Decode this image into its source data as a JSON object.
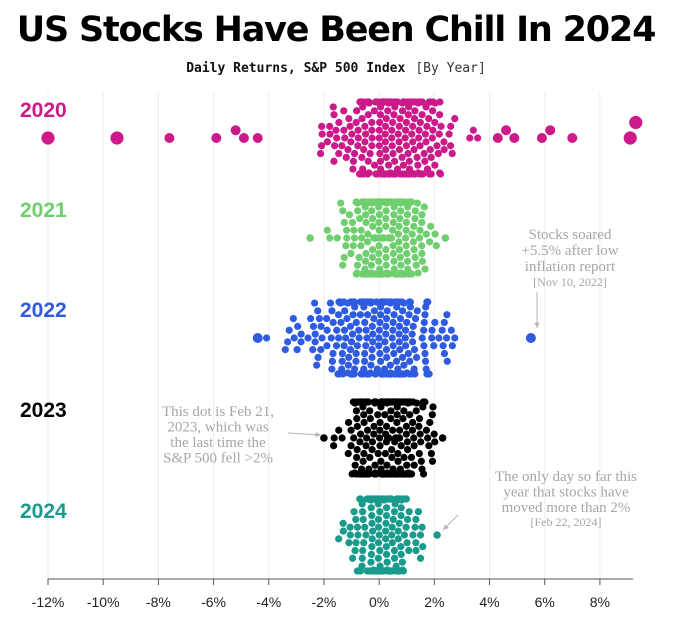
{
  "title": "US Stocks Have Been Chill In 2024",
  "subtitle": "Daily Returns, S&P 500 Index",
  "subtitle_note": "[By Year]",
  "chart_data": {
    "type": "scatter",
    "subtype": "beeswarm",
    "x_unit": "daily return (%)",
    "xlim": [
      -12,
      9.2
    ],
    "x_ticks": [
      "-12%",
      "-10%",
      "-8%",
      "-6%",
      "-4%",
      "-2%",
      "0%",
      "2%",
      "4%",
      "6%",
      "8%"
    ],
    "x_tick_values": [
      -12,
      -10,
      -8,
      -6,
      -4,
      -2,
      0,
      2,
      4,
      6,
      8
    ],
    "grid": true,
    "series": [
      {
        "name": "2020",
        "color": "#cc1a8a",
        "highlights": [
          -12.0,
          -9.5,
          -7.6,
          -5.9,
          -5.2,
          -4.9,
          -4.4,
          4.3,
          4.6,
          4.9,
          5.9,
          6.2,
          7.0,
          9.1,
          9.3
        ],
        "core": {
          "sd": 1.15,
          "range": [
            -3.5,
            3.6
          ],
          "count": 240,
          "peak": 0.5
        }
      },
      {
        "name": "2021",
        "color": "#6fcf6f",
        "highlights": [
          -2.5,
          2.4
        ],
        "core": {
          "sd": 0.72,
          "range": [
            -2.2,
            2.2
          ],
          "count": 250,
          "peak": 0.2
        }
      },
      {
        "name": "2022",
        "color": "#2f5be0",
        "highlights": [
          -4.4,
          5.5
        ],
        "core": {
          "sd": 1.35,
          "range": [
            -4.2,
            3.1
          ],
          "count": 250,
          "peak": -0.2
        }
      },
      {
        "name": "2023",
        "color": "#000000",
        "highlights": [
          -2.0,
          2.3
        ],
        "core": {
          "sd": 0.75,
          "range": [
            -1.9,
            2.2
          ],
          "count": 248,
          "peak": 0.3
        }
      },
      {
        "name": "2024",
        "color": "#1a9a8c",
        "highlights": [
          2.1
        ],
        "core": {
          "sd": 0.62,
          "range": [
            -1.6,
            1.6
          ],
          "count": 160,
          "peak": 0.2
        }
      }
    ],
    "annotations": [
      {
        "series": "2022",
        "lines": [
          "Stocks soared",
          "+5.5% after low",
          "inflation report"
        ],
        "date": "[Nov 10, 2022]",
        "target_x": 5.5
      },
      {
        "series": "2023",
        "lines": [
          "This dot is Feb 21,",
          "2023, which was",
          "the last time the",
          "S&P 500 fell >2%"
        ],
        "date": "",
        "target_x": -2.0
      },
      {
        "series": "2024",
        "lines": [
          "The only day so far this",
          "year that stocks have",
          "moved more than 2%"
        ],
        "date": "[Feb 22, 2024]",
        "target_x": 2.1
      }
    ]
  }
}
